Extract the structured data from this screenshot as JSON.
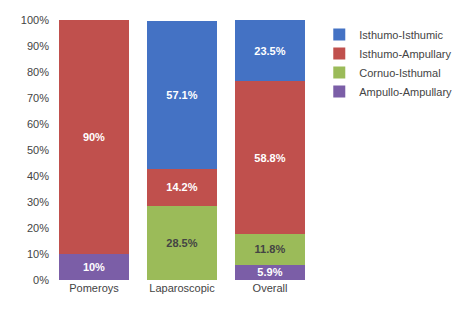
{
  "chart_data": {
    "type": "bar",
    "stacked": true,
    "categories": [
      "Pomeroys",
      "Laparoscopic",
      "Overall"
    ],
    "series": [
      {
        "name": "Ampullo-Ampullary",
        "color": "#7B5EA7",
        "values": [
          10.0,
          0.0,
          5.9
        ],
        "value_labels": [
          "10%",
          null,
          "5.9%"
        ]
      },
      {
        "name": "Cornuo-Isthumal",
        "color": "#9BBB59",
        "values": [
          0.0,
          28.5,
          11.8
        ],
        "value_labels": [
          null,
          "28.5%",
          "11.8%"
        ]
      },
      {
        "name": "Isthumo-Ampullary",
        "color": "#C0504D",
        "values": [
          90.0,
          14.2,
          58.8
        ],
        "value_labels": [
          "90%",
          "14.2%",
          "58.8%"
        ]
      },
      {
        "name": "Isthumo-Isthumic",
        "color": "#4472C4",
        "values": [
          0.0,
          57.1,
          23.5
        ],
        "value_labels": [
          null,
          "57.1%",
          "23.5%"
        ]
      }
    ],
    "data_labels": true,
    "ylim": [
      0,
      100
    ],
    "yticks": [
      {
        "value": 0,
        "label": "0%"
      },
      {
        "value": 10,
        "label": "10%"
      },
      {
        "value": 20,
        "label": "20%"
      },
      {
        "value": 30,
        "label": "30%"
      },
      {
        "value": 40,
        "label": "40%"
      },
      {
        "value": 50,
        "label": "50%"
      },
      {
        "value": 60,
        "label": "60%"
      },
      {
        "value": 70,
        "label": "70%"
      },
      {
        "value": 80,
        "label": "80%"
      },
      {
        "value": 90,
        "label": "90%"
      },
      {
        "value": 100,
        "label": "100%"
      }
    ],
    "grid": false,
    "legend": "right"
  }
}
